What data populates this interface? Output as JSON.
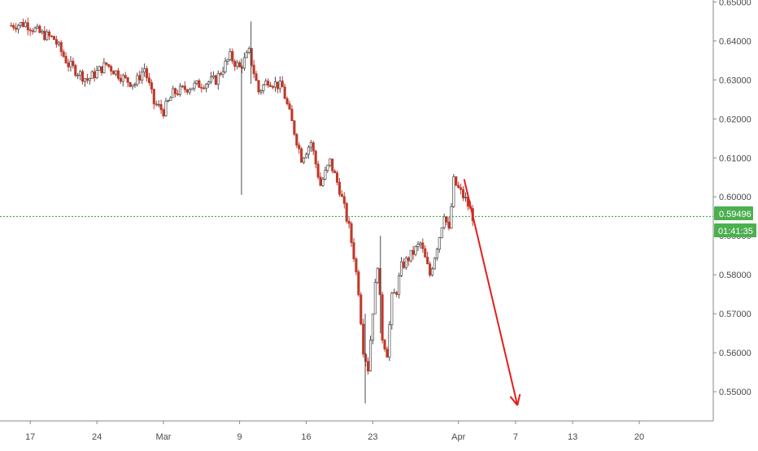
{
  "chart_data": {
    "type": "candlestick",
    "title": "",
    "xlabel": "",
    "ylabel": "",
    "ylim": [
      0.5425,
      0.6505
    ],
    "grid": false,
    "x_ticks": [
      {
        "label": "17",
        "day": -14
      },
      {
        "label": "24",
        "day": -7
      },
      {
        "label": "Mar",
        "day": 0
      },
      {
        "label": "9",
        "day": 8
      },
      {
        "label": "16",
        "day": 15
      },
      {
        "label": "23",
        "day": 22
      },
      {
        "label": "Apr",
        "day": 31
      },
      {
        "label": "7",
        "day": 37
      },
      {
        "label": "13",
        "day": 43
      },
      {
        "label": "20",
        "day": 50
      }
    ],
    "y_ticks": [
      "0.55000",
      "0.56000",
      "0.57000",
      "0.58000",
      "0.59000",
      "0.60000",
      "0.61000",
      "0.62000",
      "0.63000",
      "0.64000",
      "0.65000"
    ],
    "current_price": "0.59496",
    "current_price_value": 0.59496,
    "countdown": "01:41:35",
    "colors": {
      "up": "#4a4a4a",
      "down": "#c0392b",
      "price_line": "#2e9a3c",
      "badge": "#4caf50",
      "arrow": "#e31e1e",
      "axis": "#888888"
    },
    "close_path": [
      [
        -16.0,
        0.644
      ],
      [
        -14.5,
        0.6445
      ],
      [
        -13.0,
        0.642
      ],
      [
        -11.5,
        0.6405
      ],
      [
        -10.0,
        0.634
      ],
      [
        -9.0,
        0.632
      ],
      [
        -8.0,
        0.63
      ],
      [
        -7.0,
        0.632
      ],
      [
        -6.0,
        0.634
      ],
      [
        -5.0,
        0.632
      ],
      [
        -4.0,
        0.63
      ],
      [
        -3.0,
        0.629
      ],
      [
        -2.0,
        0.633
      ],
      [
        -1.0,
        0.624
      ],
      [
        0.0,
        0.622
      ],
      [
        1.0,
        0.6265
      ],
      [
        2.5,
        0.628
      ],
      [
        4.0,
        0.629
      ],
      [
        5.5,
        0.63
      ],
      [
        7.0,
        0.636
      ],
      [
        8.0,
        0.633
      ],
      [
        9.0,
        0.637
      ],
      [
        10.0,
        0.627
      ],
      [
        11.0,
        0.63
      ],
      [
        12.5,
        0.628
      ],
      [
        13.5,
        0.619
      ],
      [
        14.5,
        0.61
      ],
      [
        15.5,
        0.614
      ],
      [
        16.5,
        0.603
      ],
      [
        17.5,
        0.609
      ],
      [
        18.5,
        0.602
      ],
      [
        19.5,
        0.592
      ],
      [
        20.0,
        0.585
      ],
      [
        20.5,
        0.576
      ],
      [
        21.0,
        0.561
      ],
      [
        21.5,
        0.556
      ],
      [
        22.0,
        0.571
      ],
      [
        22.5,
        0.583
      ],
      [
        23.0,
        0.564
      ],
      [
        23.5,
        0.56
      ],
      [
        24.0,
        0.574
      ],
      [
        24.5,
        0.576
      ],
      [
        25.0,
        0.582
      ],
      [
        26.0,
        0.585
      ],
      [
        27.0,
        0.588
      ],
      [
        28.0,
        0.58
      ],
      [
        29.0,
        0.59
      ],
      [
        29.5,
        0.596
      ],
      [
        30.0,
        0.591
      ],
      [
        30.5,
        0.604
      ],
      [
        31.0,
        0.602
      ],
      [
        31.8,
        0.599
      ],
      [
        32.5,
        0.595
      ]
    ],
    "spikes": [
      {
        "day": 8.2,
        "high": 0.6355,
        "low": 0.6005
      },
      {
        "day": 9.2,
        "high": 0.645,
        "low": 0.629
      },
      {
        "day": 21.2,
        "high": 0.57,
        "low": 0.547
      },
      {
        "day": 22.8,
        "high": 0.59,
        "low": 0.565
      }
    ],
    "annotation_arrow": {
      "from": {
        "day": 31.6,
        "price": 0.6045
      },
      "to": {
        "day": 37.2,
        "price": 0.5465
      }
    }
  }
}
